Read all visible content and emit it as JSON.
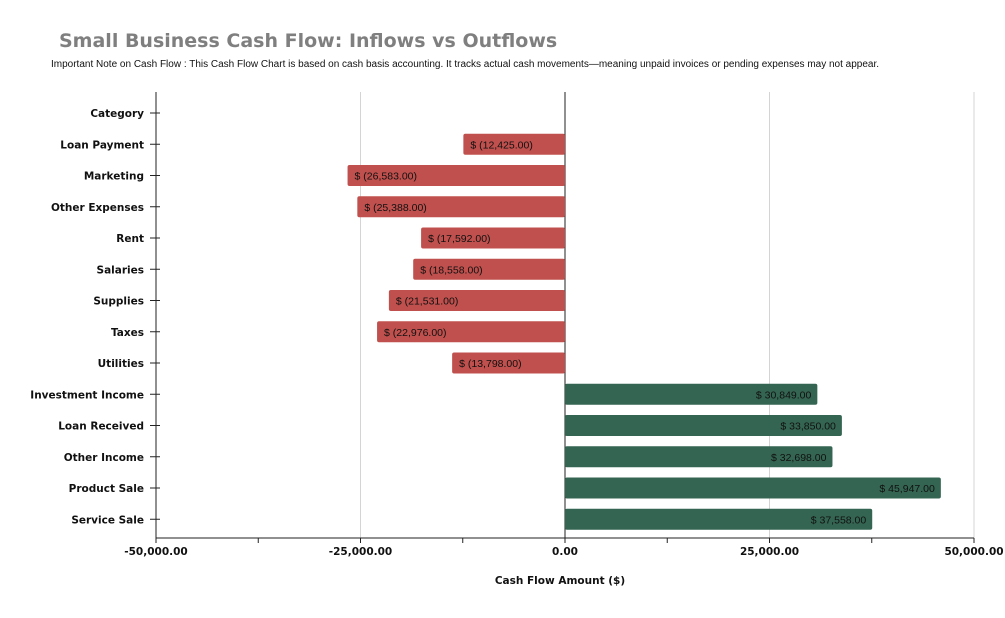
{
  "chart_data": {
    "type": "bar",
    "orientation": "horizontal",
    "title": "Small Business Cash Flow: Inflows vs Outflows",
    "subtitle": "Important Note on Cash Flow : This Cash Flow Chart is based on cash basis accounting. It tracks actual cash movements—meaning unpaid invoices or pending expenses may not appear.",
    "xlabel": "Cash Flow Amount ($)",
    "ylabel": "",
    "xlim": [
      -50000,
      50000
    ],
    "x_ticks": [
      -50000,
      -25000,
      0,
      25000,
      50000
    ],
    "x_tick_labels": [
      "-50,000.00",
      "-25,000.00",
      "0.00",
      "25,000.00",
      "50,000.00"
    ],
    "grid": "vertical",
    "categories": [
      "Category",
      "Loan Payment",
      "Marketing",
      "Other Expenses",
      "Rent",
      "Salaries",
      "Supplies",
      "Taxes",
      "Utilities",
      "Investment Income",
      "Loan Received",
      "Other Income",
      "Product Sale",
      "Service Sale"
    ],
    "values": [
      null,
      -12425,
      -26583,
      -25388,
      -17592,
      -18558,
      -21531,
      -22976,
      -13798,
      30849,
      33850,
      32698,
      45947,
      37558
    ],
    "data_labels": [
      "",
      "$ (12,425.00)",
      "$ (26,583.00)",
      "$ (25,388.00)",
      "$ (17,592.00)",
      "$ (18,558.00)",
      "$ (21,531.00)",
      "$ (22,976.00)",
      "$ (13,798.00)",
      "$ 30,849.00",
      "$ 33,850.00",
      "$ 32,698.00",
      "$ 45,947.00",
      "$ 37,558.00"
    ],
    "colors": {
      "negative": "#c0504d",
      "positive": "#346552"
    }
  }
}
